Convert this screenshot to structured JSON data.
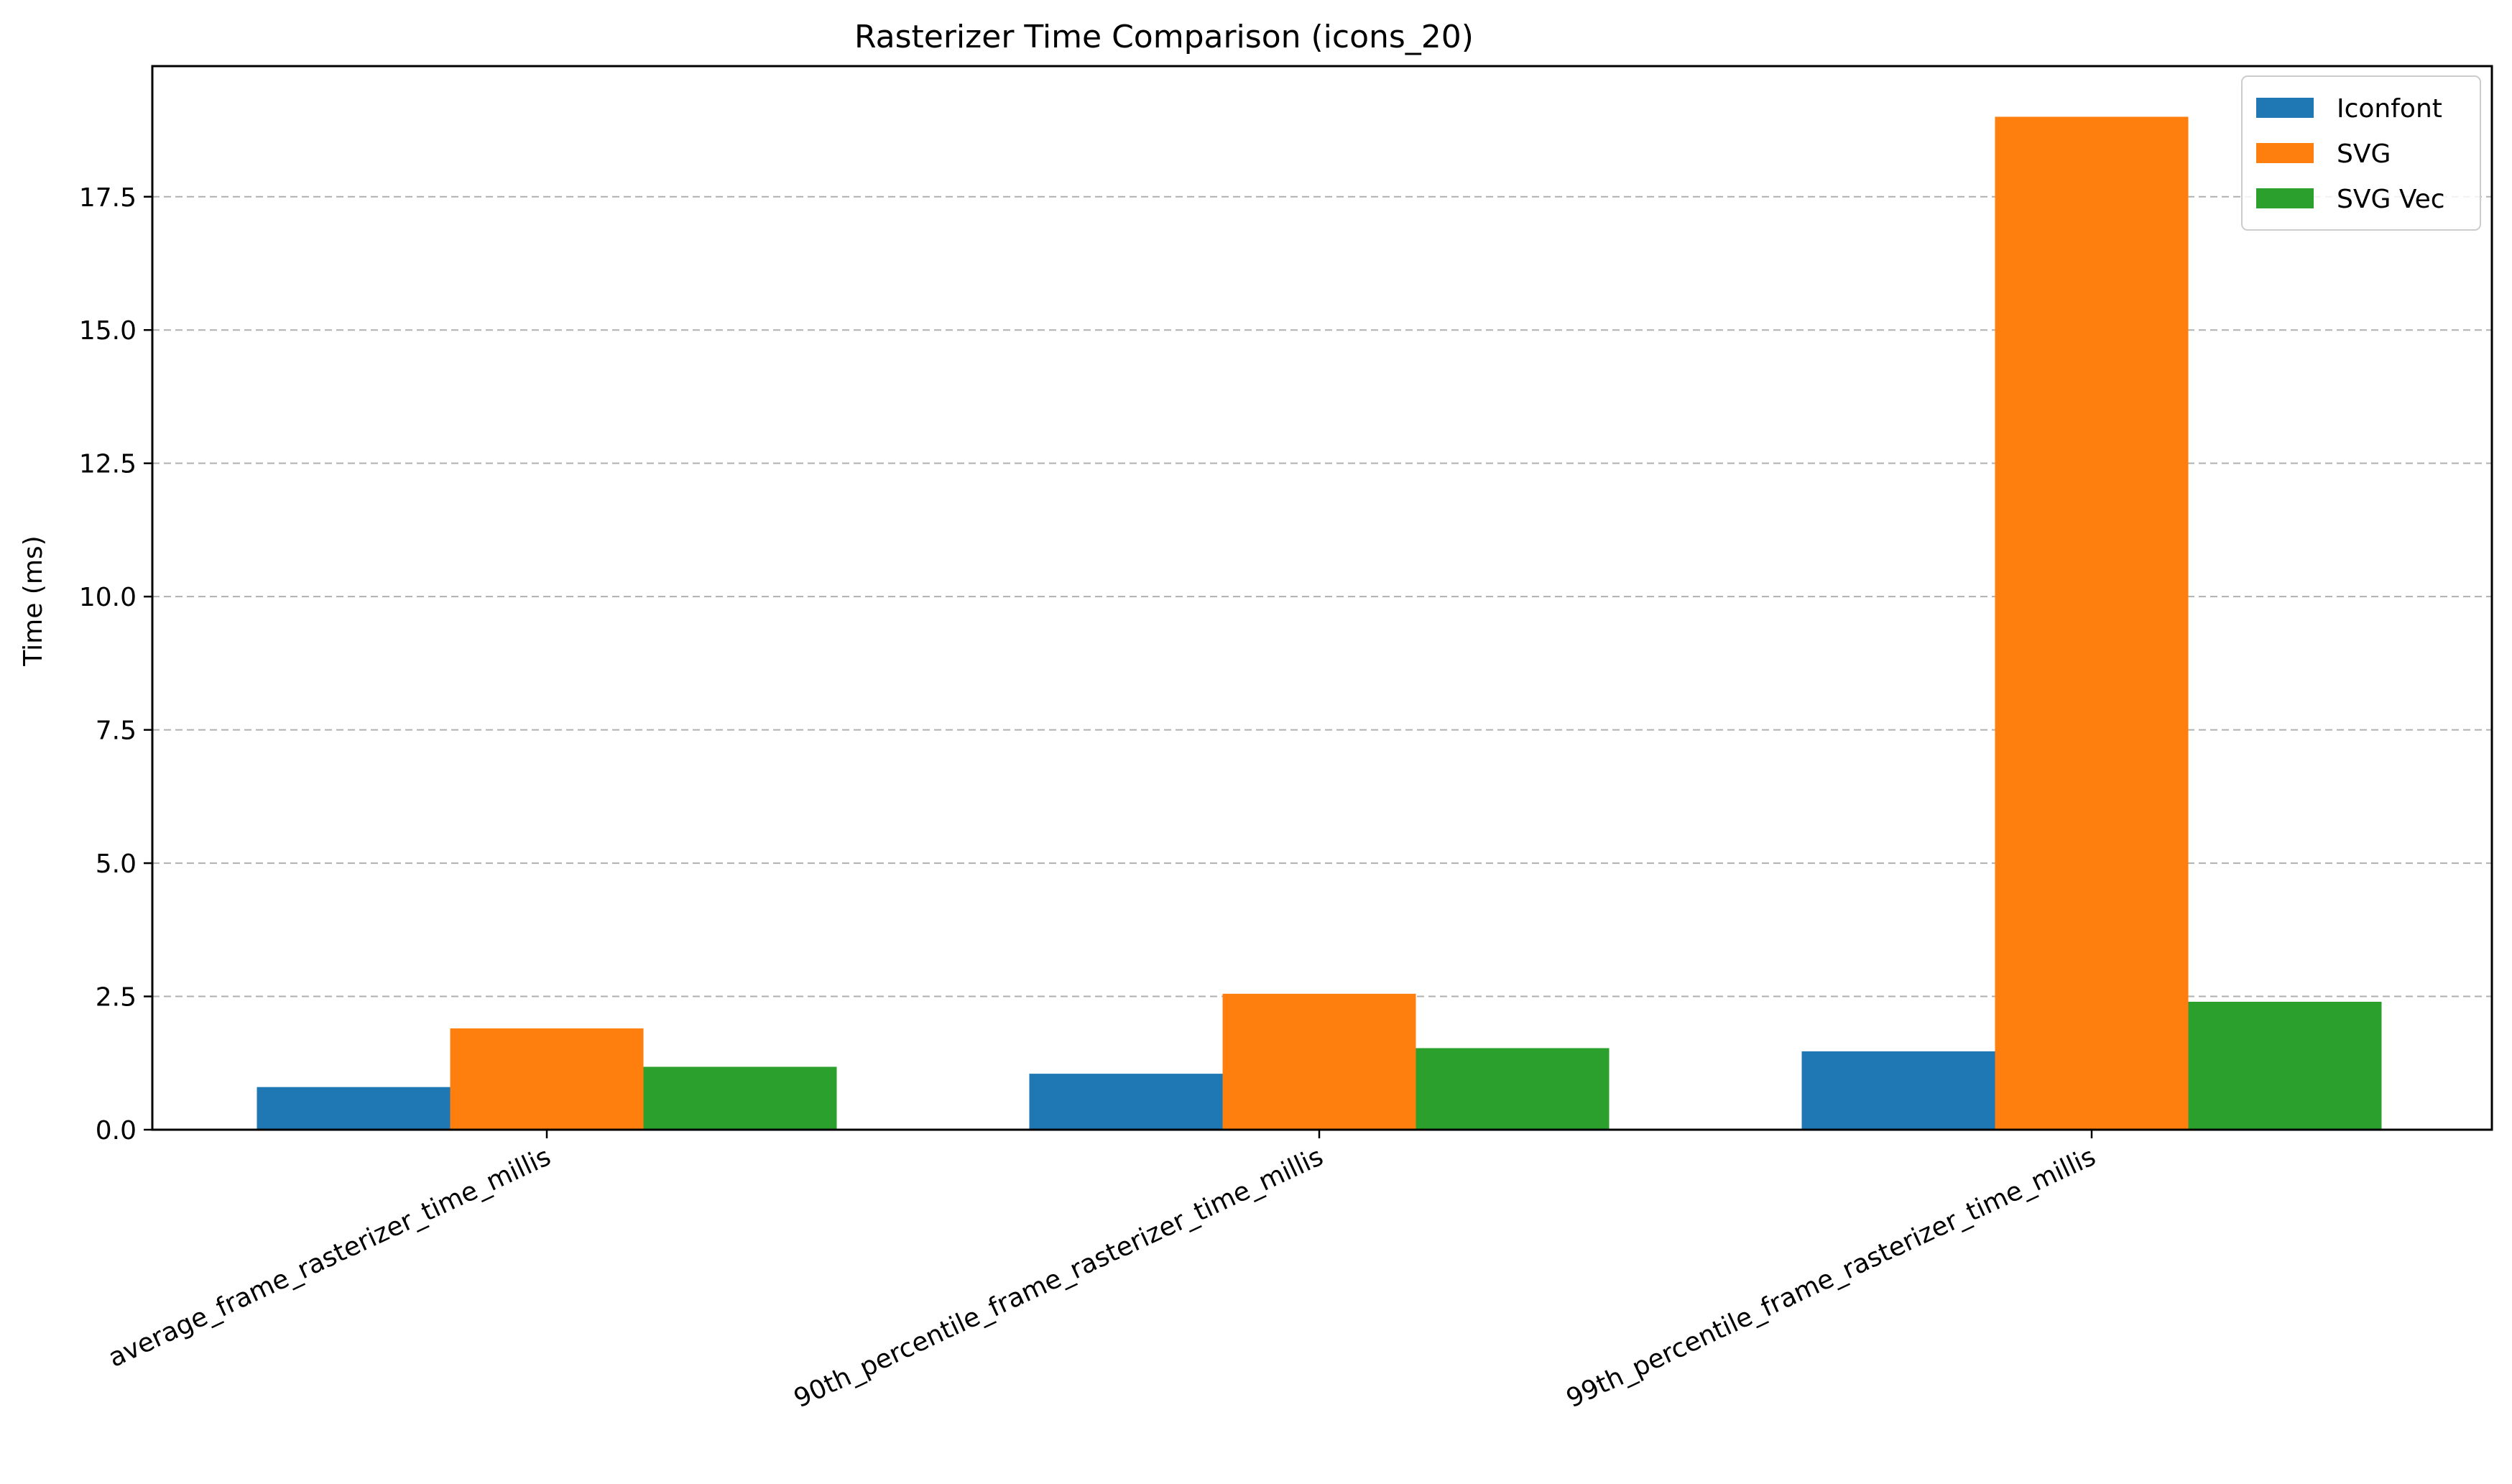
{
  "chart_data": {
    "type": "bar",
    "title": "Rasterizer Time Comparison (icons_20)",
    "xlabel": "",
    "ylabel": "Time (ms)",
    "ylim": [
      0,
      19.95
    ],
    "yticks": [
      "0.0",
      "2.5",
      "5.0",
      "7.5",
      "10.0",
      "12.5",
      "15.0",
      "17.5"
    ],
    "ytick_values": [
      0,
      2.5,
      5,
      7.5,
      10,
      12.5,
      15,
      17.5
    ],
    "grid": "y-dashed",
    "legend_position": "top-right",
    "categories": [
      "average_frame_rasterizer_time_millis",
      "90th_percentile_frame_rasterizer_time_millis",
      "99th_percentile_frame_rasterizer_time_millis"
    ],
    "series": [
      {
        "name": "Iconfont",
        "color": "#1f77b4",
        "values": [
          0.8,
          1.05,
          1.47
        ]
      },
      {
        "name": "SVG",
        "color": "#ff7f0e",
        "values": [
          1.9,
          2.55,
          19.0
        ]
      },
      {
        "name": "SVG Vec",
        "color": "#2ca02c",
        "values": [
          1.18,
          1.53,
          2.4
        ]
      }
    ]
  }
}
